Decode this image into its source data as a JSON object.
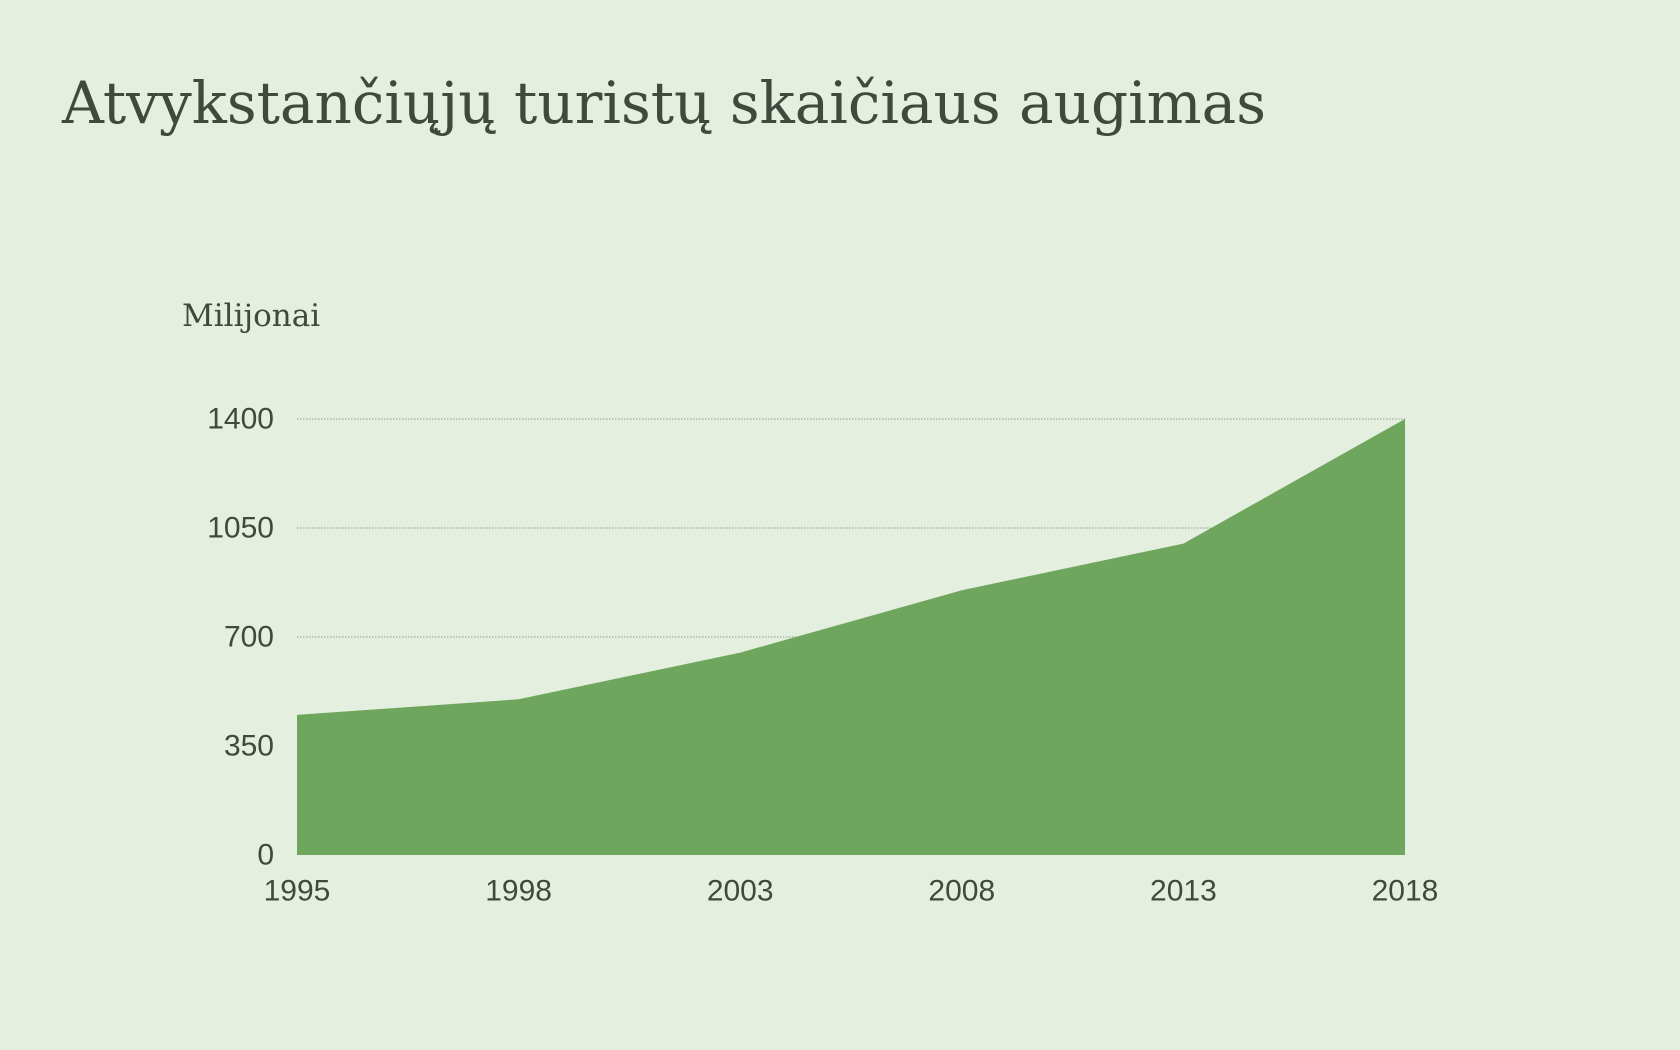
{
  "colors": {
    "background": "#e5efdf",
    "text": "#3d4a3d",
    "area": "#6fa65d",
    "grid": "#8c9a8c"
  },
  "title": "Atvykstančiųjų turistų skaičiaus augimas",
  "unit_label": "Milijonai",
  "chart_data": {
    "type": "area",
    "title": "Atvykstančiųjų turistų skaičiaus augimas",
    "xlabel": "",
    "ylabel": "Milijonai",
    "categories": [
      "1995",
      "1998",
      "2003",
      "2008",
      "2013",
      "2018"
    ],
    "series": [
      {
        "values": [
          450,
          500,
          650,
          850,
          1000,
          1400
        ]
      }
    ],
    "y_ticks": [
      "0",
      "350",
      "700",
      "1050",
      "1400"
    ],
    "ylim": [
      0,
      1400
    ],
    "grid": true,
    "grid_style": "dotted horizontal",
    "legend": "none"
  }
}
